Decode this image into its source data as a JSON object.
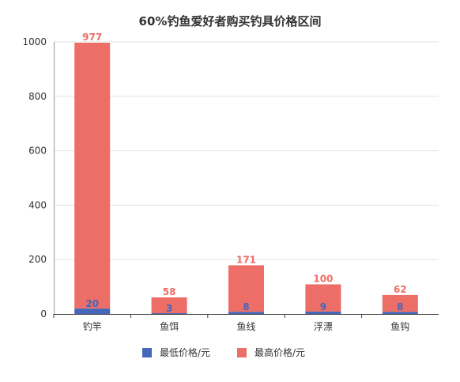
{
  "chart_data": {
    "type": "bar",
    "stacked": true,
    "title": "60%钓鱼爱好者购买钓具价格区间",
    "categories": [
      "钓竿",
      "鱼饵",
      "鱼线",
      "浮漂",
      "鱼钩"
    ],
    "series": [
      {
        "name": "最低价格/元",
        "values": [
          20,
          3,
          8,
          9,
          8
        ],
        "color": "#4466bb"
      },
      {
        "name": "最高价格/元",
        "values": [
          977,
          58,
          171,
          100,
          62
        ],
        "color": "#ec6e66"
      }
    ],
    "ylim": [
      0,
      1000
    ],
    "yticks": [
      0,
      200,
      400,
      600,
      800,
      1000
    ],
    "grid": true,
    "legend": "bottom"
  }
}
